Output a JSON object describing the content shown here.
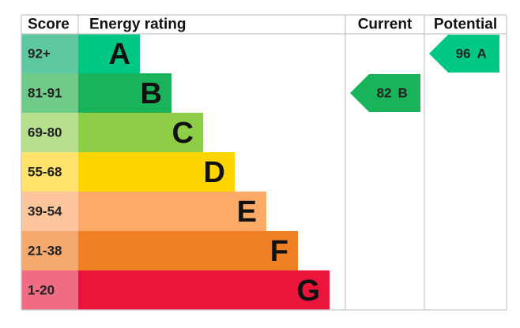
{
  "chart_data": {
    "type": "epc",
    "headers": [
      "Score",
      "Energy rating",
      "Current",
      "Potential"
    ],
    "bands": [
      {
        "score": "92+",
        "letter": "A",
        "color": "#00c781",
        "score_color": "#5ec9a0"
      },
      {
        "score": "81-91",
        "letter": "B",
        "color": "#19b459",
        "score_color": "#6ecb8a"
      },
      {
        "score": "69-80",
        "letter": "C",
        "color": "#8dce46",
        "score_color": "#b6df8e"
      },
      {
        "score": "55-68",
        "letter": "D",
        "color": "#ffd500",
        "score_color": "#ffe36a"
      },
      {
        "score": "39-54",
        "letter": "E",
        "color": "#fcaa65",
        "score_color": "#fdc59b"
      },
      {
        "score": "21-38",
        "letter": "F",
        "color": "#ef8023",
        "score_color": "#f4a96f"
      },
      {
        "score": "1-20",
        "letter": "G",
        "color": "#e9153b",
        "score_color": "#f06c82"
      }
    ],
    "current": {
      "value": 82,
      "letter": "B"
    },
    "potential": {
      "value": 96,
      "letter": "A"
    }
  }
}
